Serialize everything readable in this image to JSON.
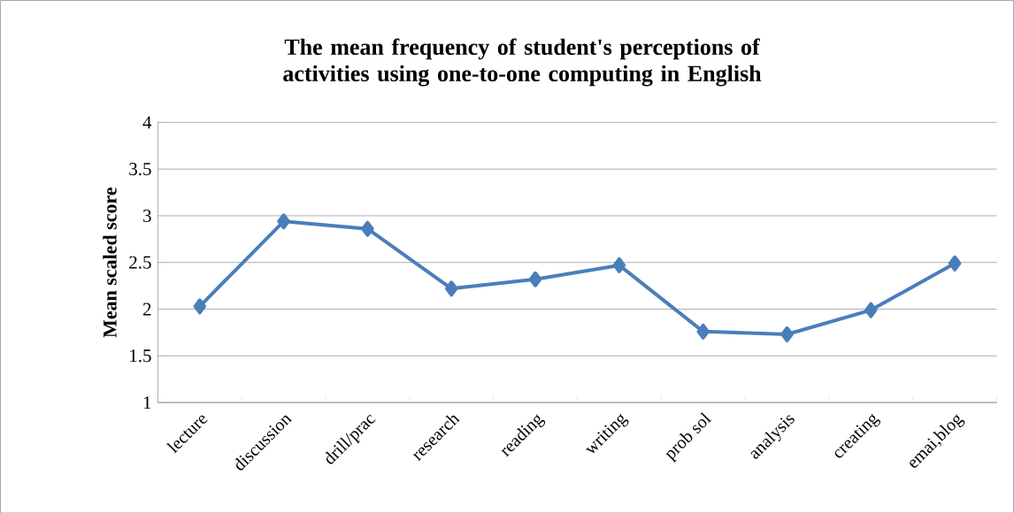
{
  "chart_data": {
    "type": "line",
    "title": "The mean frequency of student's perceptions of activities using one-to-one computing in English",
    "ylabel": "Mean scaled score",
    "categories": [
      "lecture",
      "discussion",
      "drill/prac",
      "research",
      "reading",
      "writing",
      "prob sol",
      "analysis",
      "creating",
      "emai,blog"
    ],
    "series": [
      {
        "color": "#4a7ebb",
        "values": [
          2.03,
          2.94,
          2.86,
          2.22,
          2.32,
          2.47,
          1.76,
          1.73,
          1.99,
          2.49
        ]
      }
    ],
    "ylim": [
      1,
      4
    ],
    "yticks": [
      1,
      1.5,
      2,
      2.5,
      3,
      3.5,
      4
    ],
    "grid": "y",
    "marker": "diamond",
    "line_style": "solid"
  }
}
